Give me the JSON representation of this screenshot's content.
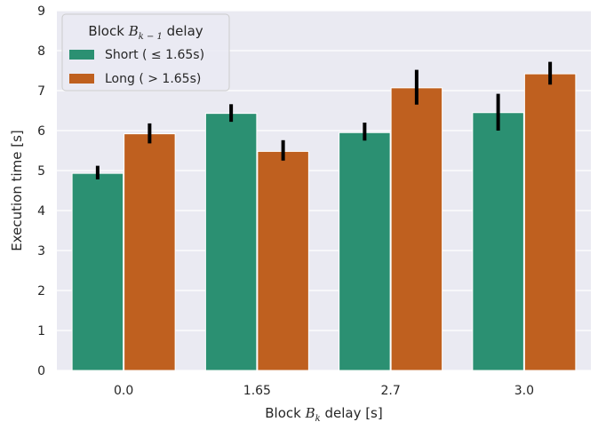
{
  "chart_data": {
    "type": "bar",
    "categories": [
      "0.0",
      "1.65",
      "2.7",
      "3.0"
    ],
    "series": [
      {
        "name": "Short (≤ 1.65s)",
        "color": "#2b9072",
        "values": [
          4.93,
          6.43,
          5.95,
          6.45
        ],
        "err_low": [
          4.78,
          6.22,
          5.75,
          6.0
        ],
        "err_high": [
          5.12,
          6.66,
          6.2,
          6.92
        ]
      },
      {
        "name": "Long (> 1.65s)",
        "color": "#bf601f",
        "values": [
          5.92,
          5.48,
          7.07,
          7.42
        ],
        "err_low": [
          5.68,
          5.25,
          6.65,
          7.15
        ],
        "err_high": [
          6.18,
          5.76,
          7.52,
          7.72
        ]
      }
    ],
    "ylim": [
      0,
      9
    ],
    "yticks": [
      "0",
      "1",
      "2",
      "3",
      "4",
      "5",
      "6",
      "7",
      "8",
      "9"
    ],
    "xlabel": {
      "pre": "Block ",
      "var": "B",
      "sub": "k",
      "post": " delay [s]"
    },
    "ylabel": "Execution time [s]",
    "legend": {
      "title": {
        "pre": "Block ",
        "var": "B",
        "sub": "k − 1",
        "post": " delay"
      },
      "entries": [
        "Short ( ≤ 1.65s)",
        "Long ( > 1.65s)"
      ],
      "placement": "top-left"
    },
    "grid": true,
    "background": "#eaeaf2"
  }
}
